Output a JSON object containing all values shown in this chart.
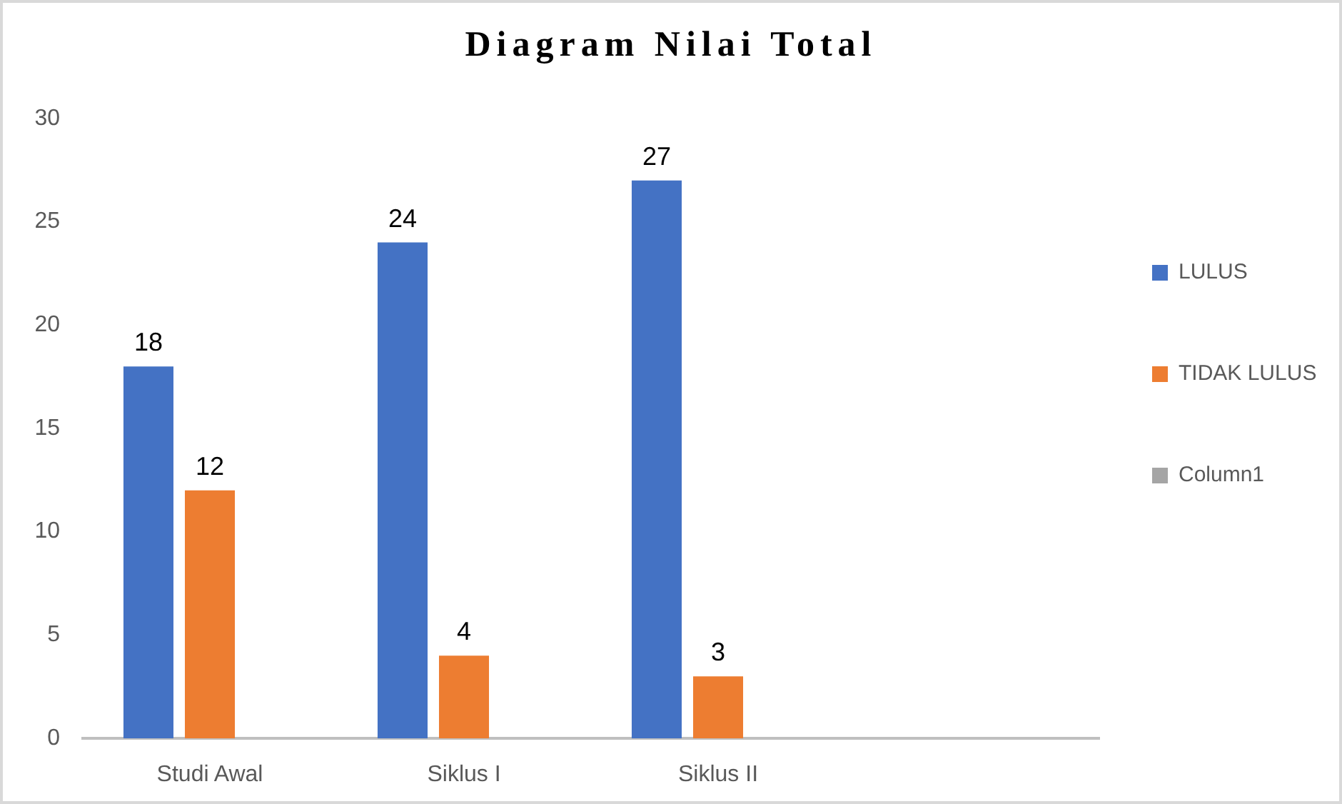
{
  "chart_data": {
    "type": "bar",
    "title": "Diagram Nilai Total",
    "categories": [
      "Studi Awal",
      "Siklus I",
      "Siklus II",
      null
    ],
    "series": [
      {
        "name": "LULUS",
        "color": "#4472c4",
        "values": [
          18,
          24,
          27,
          null
        ]
      },
      {
        "name": "TIDAK LULUS",
        "color": "#ed7d31",
        "values": [
          12,
          4,
          3,
          null
        ]
      },
      {
        "name": "Column1",
        "color": "#a5a5a5",
        "values": [
          null,
          null,
          null,
          null
        ]
      }
    ],
    "ylim": [
      0,
      30
    ],
    "yticks": [
      0,
      5,
      10,
      15,
      20,
      25,
      30
    ],
    "grid": false,
    "legend": "right",
    "data_labels": true
  }
}
